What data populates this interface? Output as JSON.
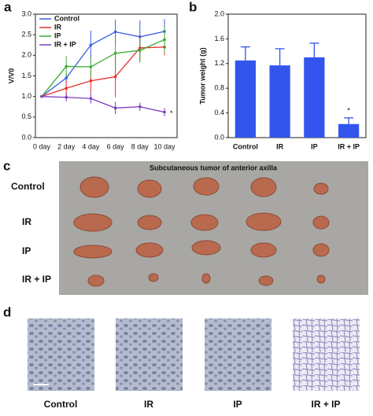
{
  "chart_data": [
    {
      "type": "line",
      "panel": "a",
      "ylabel": "V/V0",
      "categories": [
        "0 day",
        "2 day",
        "4 day",
        "6 day",
        "8 day",
        "10 day"
      ],
      "ylim": [
        0,
        3
      ],
      "yticks": [
        {
          "value": 0,
          "label": "0.0"
        },
        {
          "value": 0.5,
          "label": "0.5"
        },
        {
          "value": 1,
          "label": "1.0"
        },
        {
          "value": 1.5,
          "label": "1.5"
        },
        {
          "value": 2,
          "label": "2.0"
        },
        {
          "value": 2.5,
          "label": "2.5"
        },
        {
          "value": 3,
          "label": "3.0"
        }
      ],
      "series": [
        {
          "name": "Control",
          "color": "#3a5ee0",
          "values": [
            1,
            1.45,
            2.25,
            2.57,
            2.45,
            2.58
          ],
          "errors": [
            0,
            0.1,
            0.35,
            0.3,
            0.4,
            0.3
          ]
        },
        {
          "name": "IR",
          "color": "#e03030",
          "values": [
            1,
            1.2,
            1.38,
            1.48,
            2.18,
            2.2
          ],
          "errors": [
            0,
            0.2,
            0.3,
            0.5,
            0.3,
            0.2
          ]
        },
        {
          "name": "IP",
          "color": "#3aaa35",
          "values": [
            1,
            1.73,
            1.72,
            2.05,
            2.12,
            2.38
          ],
          "errors": [
            0,
            0.25,
            0.25,
            0.4,
            0.3,
            0.3
          ]
        },
        {
          "name": "IR + IP",
          "color": "#7a3ec0",
          "values": [
            1,
            0.98,
            0.95,
            0.72,
            0.75,
            0.62
          ],
          "errors": [
            0,
            0.1,
            0.12,
            0.15,
            0.1,
            0.1
          ]
        }
      ],
      "annotation": "*"
    },
    {
      "type": "bar",
      "panel": "b",
      "ylabel": "Tumor weight (g)",
      "categories": [
        "Control",
        "IR",
        "IP",
        "IR + IP"
      ],
      "values": [
        1.25,
        1.17,
        1.3,
        0.22
      ],
      "errors": [
        0.22,
        0.27,
        0.23,
        0.1
      ],
      "color": "#3355ee",
      "ylim": [
        0,
        2
      ],
      "yticks": [
        {
          "value": 0,
          "label": "0.0"
        },
        {
          "value": 0.4,
          "label": "0.4"
        },
        {
          "value": 0.8,
          "label": "0.8"
        },
        {
          "value": 1.2,
          "label": "1.2"
        },
        {
          "value": 1.6,
          "label": "1.6"
        },
        {
          "value": 2,
          "label": "2.0"
        }
      ],
      "annotation": "*"
    }
  ],
  "photo": {
    "panel": "c",
    "title": "Subcutaneous tumor of anterior axilla",
    "rows": [
      "Control",
      "IR",
      "IP",
      "IR + IP"
    ]
  },
  "histology": {
    "panel": "d",
    "labels": [
      "Control",
      "IR",
      "IP",
      "IR + IP"
    ]
  }
}
